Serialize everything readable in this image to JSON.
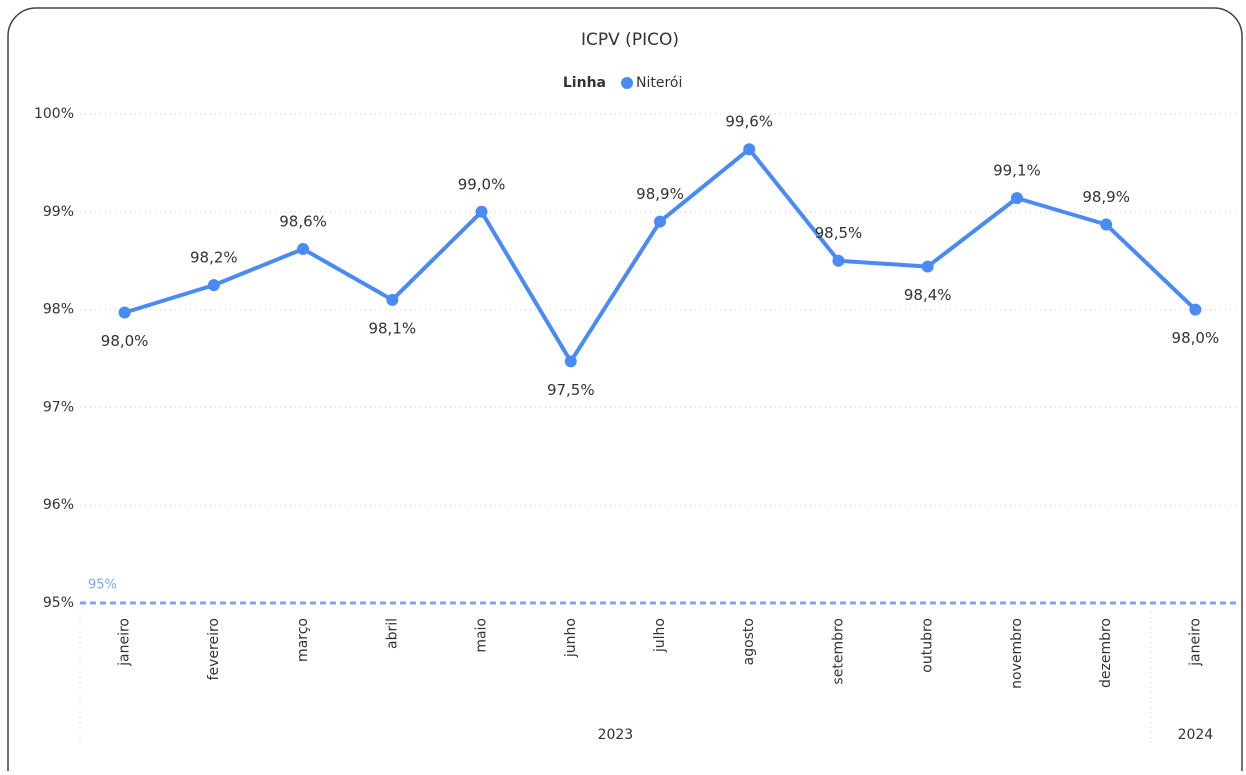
{
  "chart_data": {
    "type": "line",
    "title": "ICPV (PICO)",
    "legend_title": "Linha",
    "categories": [
      "janeiro",
      "fevereiro",
      "março",
      "abril",
      "maio",
      "junho",
      "julho",
      "agosto",
      "setembro",
      "outubro",
      "novembro",
      "dezembro",
      "janeiro"
    ],
    "x_groups": [
      {
        "label": "2023",
        "count": 12
      },
      {
        "label": "2024",
        "count": 1
      }
    ],
    "series": [
      {
        "name": "Niterói",
        "color": "#4a8af4",
        "values": [
          97.97,
          98.25,
          98.62,
          98.1,
          99.0,
          97.47,
          98.9,
          99.64,
          98.5,
          98.44,
          99.14,
          98.87,
          98.0
        ],
        "value_labels": [
          "98,0%",
          "98,2%",
          "98,6%",
          "98,1%",
          "99,0%",
          "97,5%",
          "98,9%",
          "99,6%",
          "98,5%",
          "98,4%",
          "99,1%",
          "98,9%",
          "98,0%"
        ]
      }
    ],
    "ylim": [
      95,
      100
    ],
    "yticks": [
      {
        "value": 95,
        "label": "95%"
      },
      {
        "value": 96,
        "label": "96%"
      },
      {
        "value": 97,
        "label": "97%"
      },
      {
        "value": 98,
        "label": "98%"
      },
      {
        "value": 99,
        "label": "99%"
      },
      {
        "value": 100,
        "label": "100%"
      }
    ],
    "grid": true,
    "reference_line": {
      "value": 95,
      "label": "95%",
      "color": "#7aa7f5"
    }
  }
}
